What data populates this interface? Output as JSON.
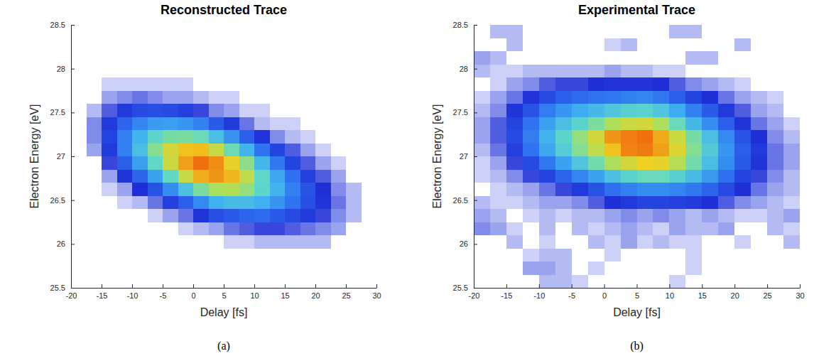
{
  "chart_data": [
    {
      "type": "heatmap",
      "title": "Reconstructed Trace",
      "x_label": "Delay [fs]",
      "y_label": "Electron Energy [eV]",
      "panel_label": "(a)",
      "xlim": [
        -20,
        30
      ],
      "ylim": [
        25.5,
        28.5
      ],
      "xticks": [
        -20,
        -15,
        -10,
        -5,
        0,
        5,
        10,
        15,
        20,
        25,
        30
      ],
      "yticks": [
        25.5,
        26,
        26.5,
        27,
        27.5,
        28,
        28.5
      ],
      "x": [
        -18.75,
        -16.25,
        -13.75,
        -11.25,
        -8.75,
        -6.25,
        -3.75,
        -1.25,
        1.25,
        3.75,
        6.25,
        8.75,
        11.25,
        13.75,
        16.25,
        18.75,
        21.25,
        23.75,
        26.25,
        28.75
      ],
      "y": [
        25.575,
        25.725,
        25.875,
        26.025,
        26.175,
        26.325,
        26.475,
        26.625,
        26.775,
        26.925,
        27.075,
        27.225,
        27.375,
        27.525,
        27.675,
        27.825,
        27.975,
        28.125,
        28.275,
        28.425
      ],
      "cells": [
        [
          0,
          0,
          0,
          0,
          0,
          0,
          0,
          0,
          0,
          0,
          0,
          0,
          0,
          0,
          0,
          0,
          0,
          0,
          0,
          0
        ],
        [
          0,
          0,
          0,
          0,
          0,
          0,
          0,
          0,
          0,
          0,
          0,
          0,
          0,
          0,
          0,
          0,
          0,
          0,
          0,
          0
        ],
        [
          0,
          0,
          0,
          0,
          0,
          0,
          0,
          0,
          0,
          0,
          0,
          0,
          0,
          0,
          0,
          0,
          0,
          0,
          0,
          0
        ],
        [
          0,
          0,
          0,
          0,
          0,
          0,
          0,
          0,
          0,
          0,
          0.01,
          0.01,
          0.02,
          0.02,
          0.02,
          0.02,
          0.02,
          0,
          0,
          0
        ],
        [
          0,
          0,
          0,
          0,
          0,
          0,
          0,
          0.01,
          0.02,
          0.03,
          0.05,
          0.06,
          0.07,
          0.07,
          0.06,
          0.05,
          0.04,
          0.03,
          0,
          0
        ],
        [
          0,
          0,
          0,
          0,
          0,
          0.01,
          0.03,
          0.05,
          0.09,
          0.14,
          0.16,
          0.18,
          0.19,
          0.16,
          0.13,
          0.1,
          0.07,
          0.04,
          0.02,
          0
        ],
        [
          0,
          0,
          0,
          0.01,
          0.02,
          0.05,
          0.11,
          0.17,
          0.26,
          0.35,
          0.39,
          0.39,
          0.35,
          0.28,
          0.21,
          0.14,
          0.09,
          0.05,
          0.02,
          0
        ],
        [
          0,
          0,
          0.01,
          0.03,
          0.08,
          0.15,
          0.27,
          0.41,
          0.56,
          0.65,
          0.67,
          0.61,
          0.49,
          0.36,
          0.24,
          0.15,
          0.08,
          0.04,
          0.02,
          0
        ],
        [
          0,
          0,
          0.03,
          0.09,
          0.18,
          0.32,
          0.51,
          0.71,
          0.87,
          0.92,
          0.85,
          0.7,
          0.5,
          0.33,
          0.2,
          0.11,
          0.06,
          0.03,
          0,
          0
        ],
        [
          0,
          0,
          0.07,
          0.17,
          0.31,
          0.5,
          0.72,
          0.9,
          1.0,
          0.94,
          0.78,
          0.59,
          0.38,
          0.22,
          0.12,
          0.06,
          0.03,
          0.01,
          0,
          0
        ],
        [
          0,
          0.03,
          0.1,
          0.24,
          0.4,
          0.58,
          0.74,
          0.83,
          0.84,
          0.71,
          0.53,
          0.36,
          0.21,
          0.12,
          0.06,
          0.03,
          0.01,
          0,
          0,
          0
        ],
        [
          0,
          0.04,
          0.12,
          0.24,
          0.36,
          0.49,
          0.55,
          0.56,
          0.52,
          0.4,
          0.28,
          0.17,
          0.09,
          0.04,
          0.02,
          0.01,
          0,
          0,
          0,
          0
        ],
        [
          0,
          0.04,
          0.1,
          0.18,
          0.25,
          0.3,
          0.31,
          0.29,
          0.24,
          0.16,
          0.1,
          0.05,
          0.02,
          0.01,
          0.01,
          0,
          0,
          0,
          0,
          0
        ],
        [
          0,
          0.02,
          0.06,
          0.1,
          0.13,
          0.14,
          0.13,
          0.11,
          0.07,
          0.04,
          0.03,
          0.01,
          0.01,
          0,
          0,
          0,
          0,
          0,
          0,
          0
        ],
        [
          0,
          0,
          0.03,
          0.04,
          0.05,
          0.04,
          0.03,
          0.03,
          0.02,
          0.01,
          0.01,
          0,
          0,
          0,
          0,
          0,
          0,
          0,
          0,
          0
        ],
        [
          0,
          0,
          0.01,
          0.01,
          0.01,
          0.01,
          0.01,
          0.01,
          0,
          0,
          0,
          0,
          0,
          0,
          0,
          0,
          0,
          0,
          0,
          0
        ],
        [
          0,
          0,
          0,
          0,
          0,
          0,
          0,
          0,
          0,
          0,
          0,
          0,
          0,
          0,
          0,
          0,
          0,
          0,
          0,
          0
        ],
        [
          0,
          0,
          0,
          0,
          0,
          0,
          0,
          0,
          0,
          0,
          0,
          0,
          0,
          0,
          0,
          0,
          0,
          0,
          0,
          0
        ],
        [
          0,
          0,
          0,
          0,
          0,
          0,
          0,
          0,
          0,
          0,
          0,
          0,
          0,
          0,
          0,
          0,
          0,
          0,
          0,
          0
        ],
        [
          0,
          0,
          0,
          0,
          0,
          0,
          0,
          0,
          0,
          0,
          0,
          0,
          0,
          0,
          0,
          0,
          0,
          0,
          0,
          0
        ]
      ]
    },
    {
      "type": "heatmap",
      "title": "Experimental Trace",
      "x_label": "Delay [fs]",
      "y_label": "Electron Energy [eV]",
      "panel_label": "(b)",
      "xlim": [
        -20,
        30
      ],
      "ylim": [
        25.5,
        28.5
      ],
      "xticks": [
        -20,
        -15,
        -10,
        -5,
        0,
        5,
        10,
        15,
        20,
        25,
        30
      ],
      "yticks": [
        25.5,
        26,
        26.5,
        27,
        27.5,
        28,
        28.5
      ],
      "x": [
        -18.75,
        -16.25,
        -13.75,
        -11.25,
        -8.75,
        -6.25,
        -3.75,
        -1.25,
        1.25,
        3.75,
        6.25,
        8.75,
        11.25,
        13.75,
        16.25,
        18.75,
        21.25,
        23.75,
        26.25,
        28.75
      ],
      "y": [
        25.575,
        25.725,
        25.875,
        26.025,
        26.175,
        26.325,
        26.475,
        26.625,
        26.775,
        26.925,
        27.075,
        27.225,
        27.375,
        27.525,
        27.675,
        27.825,
        27.975,
        28.125,
        28.275,
        28.425
      ],
      "cells": [
        [
          0,
          0,
          0,
          0,
          0.02,
          0.02,
          0.01,
          0,
          0,
          0,
          0,
          0,
          0.01,
          0,
          0,
          0,
          0,
          0,
          0,
          0
        ],
        [
          0,
          0,
          0,
          0.03,
          0.03,
          0.02,
          0,
          0.01,
          0,
          0,
          0,
          0,
          0,
          0.01,
          0,
          0,
          0,
          0,
          0,
          0
        ],
        [
          0,
          0,
          0,
          0.01,
          0.02,
          0.02,
          0,
          0,
          0.01,
          0,
          0,
          0,
          0,
          0.01,
          0,
          0,
          0,
          0,
          0,
          0
        ],
        [
          0,
          0,
          0.02,
          0,
          0.01,
          0,
          0,
          0.02,
          0.01,
          0.03,
          0.01,
          0.02,
          0.01,
          0.01,
          0,
          0,
          0.01,
          0,
          0,
          0.02
        ],
        [
          0.04,
          0.03,
          0.01,
          0,
          0.02,
          0,
          0.02,
          0.01,
          0.02,
          0.03,
          0.02,
          0.01,
          0.03,
          0.02,
          0.02,
          0.03,
          0,
          0,
          0.02,
          0.01
        ],
        [
          0.03,
          0.02,
          0,
          0.01,
          0.02,
          0.01,
          0.02,
          0.02,
          0.03,
          0.04,
          0.03,
          0.04,
          0.03,
          0.02,
          0.03,
          0.02,
          0.01,
          0.01,
          0.02,
          0.03
        ],
        [
          0.02,
          0.01,
          0.01,
          0.02,
          0.03,
          0.03,
          0.04,
          0.06,
          0.08,
          0.1,
          0.12,
          0.12,
          0.11,
          0.1,
          0.08,
          0.06,
          0.04,
          0.03,
          0.02,
          0.01
        ],
        [
          0,
          0.01,
          0.02,
          0.03,
          0.05,
          0.07,
          0.1,
          0.15,
          0.2,
          0.24,
          0.27,
          0.27,
          0.25,
          0.22,
          0.18,
          0.13,
          0.08,
          0.05,
          0.03,
          0.02
        ],
        [
          0.01,
          0.02,
          0.04,
          0.07,
          0.12,
          0.18,
          0.25,
          0.32,
          0.41,
          0.48,
          0.52,
          0.52,
          0.47,
          0.39,
          0.3,
          0.2,
          0.12,
          0.07,
          0.04,
          0.02
        ],
        [
          0.01,
          0.03,
          0.07,
          0.13,
          0.22,
          0.32,
          0.43,
          0.54,
          0.66,
          0.74,
          0.8,
          0.78,
          0.68,
          0.54,
          0.4,
          0.27,
          0.16,
          0.09,
          0.05,
          0.03
        ],
        [
          0.02,
          0.05,
          0.11,
          0.21,
          0.33,
          0.46,
          0.58,
          0.7,
          0.83,
          0.96,
          0.98,
          0.9,
          0.76,
          0.58,
          0.44,
          0.29,
          0.17,
          0.1,
          0.05,
          0.03
        ],
        [
          0.03,
          0.06,
          0.13,
          0.23,
          0.36,
          0.49,
          0.61,
          0.74,
          0.92,
          0.97,
          1.0,
          0.88,
          0.72,
          0.55,
          0.4,
          0.26,
          0.15,
          0.08,
          0.04,
          0.02
        ],
        [
          0.03,
          0.06,
          0.12,
          0.21,
          0.31,
          0.4,
          0.48,
          0.56,
          0.66,
          0.72,
          0.74,
          0.66,
          0.52,
          0.38,
          0.27,
          0.17,
          0.09,
          0.05,
          0.03,
          0.01
        ],
        [
          0.02,
          0.04,
          0.09,
          0.15,
          0.23,
          0.29,
          0.34,
          0.38,
          0.43,
          0.47,
          0.48,
          0.43,
          0.34,
          0.24,
          0.16,
          0.1,
          0.06,
          0.03,
          0.02,
          0
        ],
        [
          0.01,
          0.03,
          0.05,
          0.09,
          0.13,
          0.17,
          0.19,
          0.21,
          0.22,
          0.24,
          0.25,
          0.22,
          0.17,
          0.12,
          0.08,
          0.05,
          0.03,
          0.02,
          0.01,
          0
        ],
        [
          0,
          0.01,
          0.03,
          0.04,
          0.06,
          0.07,
          0.07,
          0.08,
          0.09,
          0.09,
          0.09,
          0.08,
          0.06,
          0.04,
          0.03,
          0.02,
          0.01,
          0,
          0,
          0
        ],
        [
          0.02,
          0.01,
          0.01,
          0.02,
          0.02,
          0.02,
          0.02,
          0.02,
          0.03,
          0.02,
          0.02,
          0.01,
          0.01,
          0,
          0,
          0,
          0,
          0,
          0,
          0
        ],
        [
          0.03,
          0.02,
          0,
          0,
          0,
          0,
          0,
          0,
          0,
          0,
          0,
          0,
          0,
          0.02,
          0.02,
          0,
          0,
          0,
          0,
          0
        ],
        [
          0,
          0,
          0.02,
          0,
          0,
          0,
          0,
          0,
          0.01,
          0.02,
          0,
          0,
          0,
          0,
          0,
          0,
          0.02,
          0,
          0,
          0
        ],
        [
          0,
          0.02,
          0.02,
          0,
          0,
          0,
          0,
          0,
          0,
          0,
          0,
          0,
          0.02,
          0.02,
          0,
          0,
          0,
          0,
          0,
          0
        ]
      ]
    }
  ]
}
